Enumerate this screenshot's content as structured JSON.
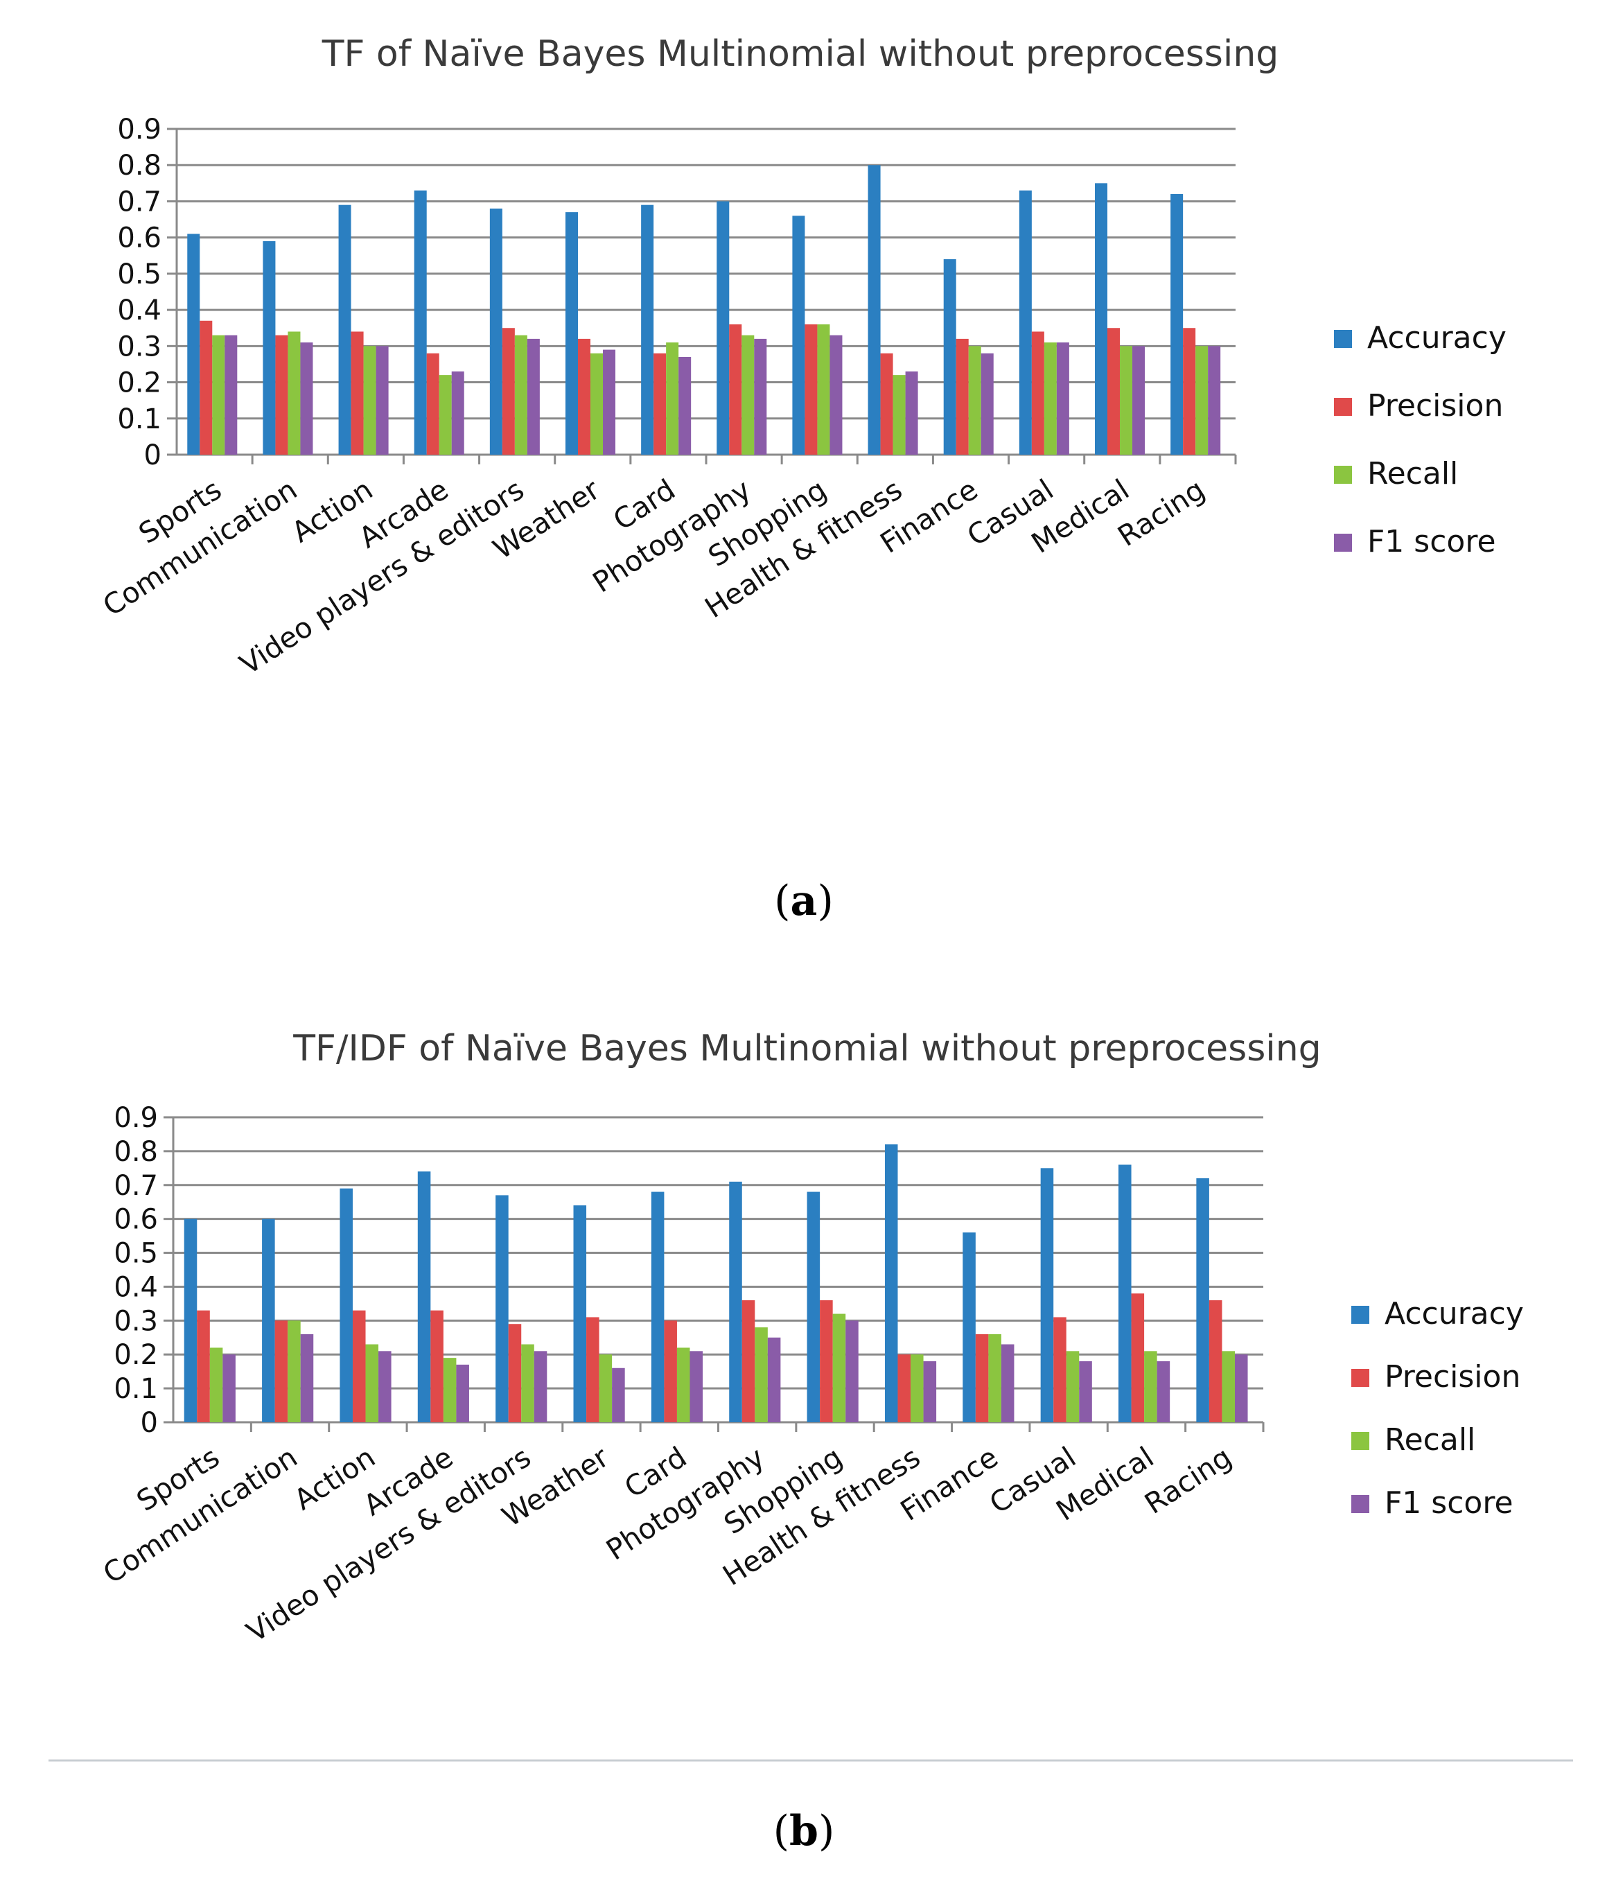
{
  "colors": {
    "Accuracy": "#2b7fc1",
    "Precision": "#e04a4a",
    "Recall": "#8bc540",
    "F1 score": "#8a5ca8"
  },
  "chart_data": [
    {
      "type": "bar",
      "title": "TF of Naïve Bayes Multinomial without  preprocessing",
      "caption": "(a)",
      "caption_letter": "a",
      "categories": [
        "Sports",
        "Communication",
        "Action",
        "Arcade",
        "Video players & editors",
        "Weather",
        "Card",
        "Photography",
        "Shopping",
        "Health & fitness",
        "Finance",
        "Casual",
        "Medical",
        "Racing"
      ],
      "series": [
        {
          "name": "Accuracy",
          "values": [
            0.61,
            0.59,
            0.69,
            0.73,
            0.68,
            0.67,
            0.69,
            0.7,
            0.66,
            0.8,
            0.54,
            0.73,
            0.75,
            0.72
          ]
        },
        {
          "name": "Precision",
          "values": [
            0.37,
            0.33,
            0.34,
            0.28,
            0.35,
            0.32,
            0.28,
            0.36,
            0.36,
            0.28,
            0.32,
            0.34,
            0.35,
            0.35
          ]
        },
        {
          "name": "Recall",
          "values": [
            0.33,
            0.34,
            0.3,
            0.22,
            0.33,
            0.28,
            0.31,
            0.33,
            0.36,
            0.22,
            0.3,
            0.31,
            0.3,
            0.3
          ]
        },
        {
          "name": "F1 score",
          "values": [
            0.33,
            0.31,
            0.3,
            0.23,
            0.32,
            0.29,
            0.27,
            0.32,
            0.33,
            0.23,
            0.28,
            0.31,
            0.3,
            0.3
          ]
        }
      ],
      "yticks": [
        "0",
        "0.1",
        "0.2",
        "0.3",
        "0.4",
        "0.5",
        "0.6",
        "0.7",
        "0.8",
        "0.9"
      ],
      "ylim": [
        0,
        0.9
      ],
      "grid": true,
      "legend": "right"
    },
    {
      "type": "bar",
      "title": "TF/IDF of Naïve Bayes Multinomial without  preprocessing",
      "caption": "(b)",
      "caption_letter": "b",
      "categories": [
        "Sports",
        "Communication",
        "Action",
        "Arcade",
        "Video players & editors",
        "Weather",
        "Card",
        "Photography",
        "Shopping",
        "Health & fitness",
        "Finance",
        "Casual",
        "Medical",
        "Racing"
      ],
      "series": [
        {
          "name": "Accuracy",
          "values": [
            0.6,
            0.6,
            0.69,
            0.74,
            0.67,
            0.64,
            0.68,
            0.71,
            0.68,
            0.82,
            0.56,
            0.75,
            0.76,
            0.72
          ]
        },
        {
          "name": "Precision",
          "values": [
            0.33,
            0.3,
            0.33,
            0.33,
            0.29,
            0.31,
            0.3,
            0.36,
            0.36,
            0.2,
            0.26,
            0.31,
            0.38,
            0.36
          ]
        },
        {
          "name": "Recall",
          "values": [
            0.22,
            0.3,
            0.23,
            0.19,
            0.23,
            0.2,
            0.22,
            0.28,
            0.32,
            0.2,
            0.26,
            0.21,
            0.21,
            0.21
          ]
        },
        {
          "name": "F1 score",
          "values": [
            0.2,
            0.26,
            0.21,
            0.17,
            0.21,
            0.16,
            0.21,
            0.25,
            0.3,
            0.18,
            0.23,
            0.18,
            0.18,
            0.2
          ]
        }
      ],
      "yticks": [
        "0",
        "0.1",
        "0.2",
        "0.3",
        "0.4",
        "0.5",
        "0.6",
        "0.7",
        "0.8",
        "0.9"
      ],
      "ylim": [
        0,
        0.9
      ],
      "grid": true,
      "legend": "right"
    }
  ]
}
